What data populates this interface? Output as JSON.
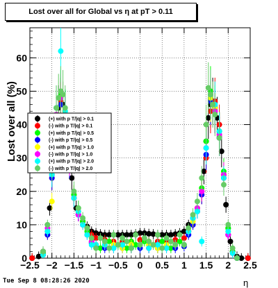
{
  "title": "Lost over all for Global vs   η at pT > 0.11",
  "timestamp": "Tue Sep  8 08:28:26 2020",
  "chart_data": {
    "type": "scatter",
    "title": "Lost over all for Global vs   η at pT > 0.11",
    "xlabel": "η",
    "ylabel": "Lost over all (%)",
    "xlim": [
      -2.5,
      2.5
    ],
    "ylim": [
      0,
      69
    ],
    "xticks": [
      -2.5,
      -2,
      -1.5,
      -1,
      -0.5,
      0,
      0.5,
      1,
      1.5,
      2,
      2.5
    ],
    "xtick_labels": [
      "−2.5",
      "−2",
      "−1.5",
      "−1",
      "−0.5",
      "0",
      "0.5",
      "1",
      "1.5",
      "2",
      "2.5"
    ],
    "yticks": [
      0,
      10,
      20,
      30,
      40,
      50,
      60
    ],
    "ytick_labels": [
      "0",
      "10",
      "20",
      "30",
      "40",
      "50",
      "60"
    ],
    "grid": true,
    "legend_position": "left",
    "series": [
      {
        "name": "(+) with p T/|q| > 0.1",
        "color": "#000000",
        "x": [
          -2.45,
          -2.3,
          -2.2,
          -2.1,
          -2.05,
          -2.0,
          -1.95,
          -1.9,
          -1.85,
          -1.8,
          -1.75,
          -1.7,
          -1.65,
          -1.6,
          -1.55,
          -1.5,
          -1.45,
          -1.4,
          -1.3,
          -1.2,
          -1.1,
          -1.0,
          -0.9,
          -0.8,
          -0.7,
          -0.6,
          -0.5,
          -0.4,
          -0.3,
          -0.2,
          -0.1,
          0,
          0.1,
          0.2,
          0.3,
          0.4,
          0.5,
          0.6,
          0.7,
          0.8,
          0.9,
          1.0,
          1.1,
          1.2,
          1.3,
          1.4,
          1.45,
          1.5,
          1.55,
          1.6,
          1.65,
          1.7,
          1.75,
          1.8,
          1.85,
          1.9,
          1.95,
          2.0,
          2.05,
          2.1,
          2.2,
          2.3,
          2.45
        ],
        "y": [
          0,
          0.5,
          2,
          8,
          15,
          25,
          33,
          40,
          45,
          47,
          46,
          42,
          36,
          30,
          24,
          18,
          15,
          13,
          11,
          9.5,
          8,
          7.5,
          7.2,
          7,
          7,
          7,
          7,
          7,
          7,
          7,
          7.2,
          7.5,
          7.5,
          7.3,
          7.2,
          7,
          7,
          7,
          7,
          7.2,
          7.5,
          8,
          10,
          12,
          15,
          20,
          26,
          35,
          42,
          46,
          47,
          45,
          42,
          38,
          32,
          25,
          16,
          9,
          5,
          2,
          0.5,
          0,
          0
        ]
      },
      {
        "name": "(-) with p T/|q| > 0.1",
        "color": "#ff0000",
        "x": [
          -2.45,
          -2.2,
          -2.1,
          -2.0,
          -1.9,
          -1.8,
          -1.7,
          -1.6,
          -1.5,
          -1.4,
          -1.3,
          -1.2,
          -1.1,
          -1.0,
          -0.8,
          -0.6,
          -0.4,
          -0.2,
          0,
          0.2,
          0.4,
          0.6,
          0.8,
          1.0,
          1.1,
          1.2,
          1.3,
          1.4,
          1.5,
          1.6,
          1.7,
          1.8,
          1.9,
          2.0,
          2.1,
          2.2,
          2.45
        ],
        "y": [
          0,
          1.5,
          7,
          24,
          40,
          47,
          43,
          30,
          19,
          14,
          11,
          9,
          7,
          6,
          5.5,
          5,
          5,
          5,
          5.5,
          5,
          5,
          5,
          5.5,
          6,
          8,
          10,
          14,
          19,
          30,
          44,
          47,
          40,
          25,
          7,
          1.5,
          0,
          0
        ]
      },
      {
        "name": "(+) with p T/|q| > 0.5",
        "color": "#00ff00",
        "x": [
          -2.2,
          -2.1,
          -2.0,
          -1.9,
          -1.8,
          -1.7,
          -1.6,
          -1.5,
          -1.4,
          -1.3,
          -1.2,
          -1.1,
          -1.0,
          -0.9,
          -0.8,
          -0.7,
          -0.6,
          -0.5,
          -0.4,
          -0.3,
          -0.2,
          -0.1,
          0,
          0.1,
          0.2,
          0.3,
          0.4,
          0.5,
          0.6,
          0.7,
          0.8,
          0.9,
          1.0,
          1.1,
          1.2,
          1.3,
          1.4,
          1.5,
          1.6,
          1.7,
          1.8,
          1.9,
          2.0,
          2.1,
          2.2
        ],
        "y": [
          1.5,
          8,
          26,
          42,
          49,
          44,
          30,
          19,
          15,
          11,
          8,
          5,
          4,
          3,
          4,
          5,
          3,
          4,
          4,
          3,
          5,
          4,
          3,
          5,
          4,
          4,
          3,
          5,
          4,
          3,
          4,
          5,
          4,
          8,
          12,
          15,
          21,
          35,
          50,
          45,
          38,
          26,
          9,
          2,
          0
        ]
      },
      {
        "name": "(-) with p T/|q| > 0.5",
        "color": "#0000ff",
        "x": [
          -2.2,
          -2.1,
          -2.0,
          -1.9,
          -1.8,
          -1.7,
          -1.6,
          -1.5,
          -1.4,
          -1.3,
          -1.2,
          -1.1,
          -1.0,
          -0.8,
          -0.6,
          -0.4,
          -0.2,
          0,
          0.2,
          0.4,
          0.6,
          0.8,
          1.0,
          1.1,
          1.2,
          1.3,
          1.4,
          1.5,
          1.6,
          1.7,
          1.8,
          1.9,
          2.0,
          2.1,
          2.2
        ],
        "y": [
          1,
          7,
          24,
          40,
          46,
          42,
          28,
          18,
          13,
          10,
          7,
          4.5,
          3.5,
          3,
          3,
          3,
          3,
          3,
          3,
          3,
          3,
          3,
          3.5,
          7,
          10,
          14,
          19,
          31,
          47,
          44,
          36,
          24,
          7,
          1.5,
          0
        ]
      },
      {
        "name": "(+) with p T/|q| > 1.0",
        "color": "#ffff00",
        "x": [
          -2.2,
          -2.1,
          -2.0,
          -1.9,
          -1.8,
          -1.7,
          -1.6,
          -1.5,
          -1.4,
          -1.3,
          -1.2,
          -1.1,
          -1.0,
          -0.8,
          -0.6,
          -0.4,
          -0.2,
          0,
          0.2,
          0.4,
          0.6,
          0.8,
          1.0,
          1.1,
          1.2,
          1.3,
          1.4,
          1.5,
          1.6,
          1.7,
          1.8,
          1.9,
          2.0,
          2.1,
          2.2
        ],
        "y": [
          1,
          8,
          17,
          41,
          48,
          43,
          30,
          18,
          14,
          10,
          7,
          5,
          4,
          4,
          4,
          3,
          4,
          4,
          4,
          3,
          4,
          4,
          4,
          8,
          11,
          15,
          20,
          33,
          48,
          45,
          37,
          25,
          8,
          1.5,
          0
        ]
      },
      {
        "name": "(-) with p T/|q| > 1.0",
        "color": "#ff00ff",
        "x": [
          -2.2,
          -2.1,
          -2.0,
          -1.9,
          -1.8,
          -1.7,
          -1.6,
          -1.5,
          -1.4,
          -1.3,
          -1.2,
          -1.1,
          -1.0,
          -0.8,
          -0.6,
          -0.4,
          -0.2,
          0,
          0.2,
          0.4,
          0.6,
          0.8,
          1.0,
          1.1,
          1.2,
          1.3,
          1.4,
          1.5,
          1.6,
          1.7,
          1.8,
          1.9,
          2.0,
          2.1,
          2.2
        ],
        "y": [
          1,
          9,
          26,
          43,
          48,
          42,
          29,
          18,
          13,
          10,
          7,
          5,
          4,
          4,
          3,
          4,
          3,
          4,
          3,
          4,
          3,
          4,
          4,
          8,
          12,
          15,
          20,
          33,
          49,
          44,
          37,
          25,
          7,
          1.5,
          0
        ]
      },
      {
        "name": "(+) with p T/|q| > 2.0",
        "color": "#00ffff",
        "x": [
          -2.2,
          -2.1,
          -2.0,
          -1.9,
          -1.8,
          -1.7,
          -1.6,
          -1.5,
          -1.4,
          -1.3,
          -1.2,
          -1.1,
          -1.0,
          -0.8,
          -0.6,
          -0.4,
          -0.2,
          0,
          0.2,
          0.4,
          0.6,
          0.8,
          1.0,
          1.1,
          1.2,
          1.3,
          1.4,
          1.5,
          1.6,
          1.7,
          1.8,
          1.9,
          2.0,
          2.1,
          2.2
        ],
        "y": [
          1,
          8,
          25,
          45,
          62,
          44,
          30,
          18,
          14,
          10,
          7,
          4,
          4,
          4,
          3,
          4,
          3,
          4,
          3,
          4,
          3,
          4,
          4,
          8,
          12,
          14,
          5,
          33,
          49,
          46,
          38,
          24,
          8,
          1.5,
          0
        ]
      },
      {
        "name": "(-) with p T/|q| > 2.0",
        "color": "#66cc66",
        "x": [
          -2.2,
          -2.1,
          -2.0,
          -1.9,
          -1.85,
          -1.8,
          -1.75,
          -1.7,
          -1.6,
          -1.5,
          -1.4,
          -1.3,
          -1.2,
          -1.1,
          -1.0,
          -0.9,
          -0.8,
          -0.7,
          -0.6,
          -0.5,
          -0.4,
          -0.3,
          -0.2,
          -0.1,
          0,
          0.1,
          0.2,
          0.3,
          0.4,
          0.5,
          0.6,
          0.7,
          0.8,
          0.9,
          1.0,
          1.1,
          1.2,
          1.3,
          1.4,
          1.5,
          1.55,
          1.6,
          1.65,
          1.7,
          1.8,
          1.9,
          2.0,
          2.1,
          2.2
        ],
        "y": [
          2,
          10,
          27,
          45,
          48,
          50,
          49,
          45,
          31,
          20,
          15,
          12,
          9,
          6,
          3,
          6,
          5,
          3,
          7,
          4,
          6,
          5,
          3,
          7,
          4,
          6,
          5,
          4,
          7,
          3,
          6,
          5,
          4,
          7,
          4,
          9,
          13,
          17,
          24,
          40,
          51,
          49,
          46,
          43,
          36,
          22,
          10,
          3,
          0
        ]
      }
    ]
  }
}
